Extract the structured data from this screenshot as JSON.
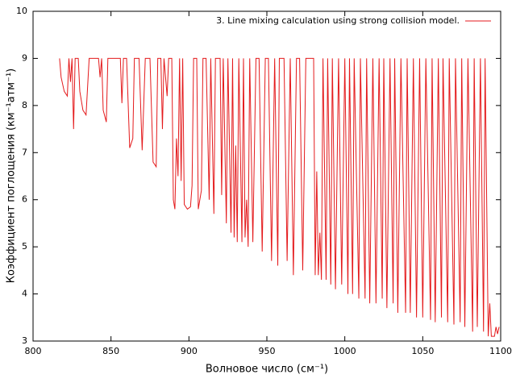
{
  "chart_data": {
    "type": "line",
    "xlabel": "Волновое число (см⁻¹)",
    "ylabel": "Коэффициент поглощения (км⁻¹атм⁻¹)",
    "legend_position": "top-right",
    "xlim": [
      800,
      1100
    ],
    "xticks": [
      800,
      850,
      900,
      950,
      1000,
      1050,
      1100
    ],
    "ylim": [
      3,
      10
    ],
    "yticks": [
      3,
      4,
      5,
      6,
      7,
      8,
      9,
      10
    ],
    "x": [
      817,
      818,
      820,
      822,
      823,
      824,
      825,
      826,
      827,
      829,
      830,
      832,
      834,
      836,
      842,
      843,
      844,
      845,
      847,
      848,
      856,
      857,
      858,
      860,
      862,
      864,
      865,
      868,
      870,
      872,
      875,
      877,
      879,
      880,
      882,
      883,
      884,
      886,
      887,
      889,
      890,
      891,
      892,
      893,
      894,
      895,
      896,
      897,
      899,
      901,
      902,
      903,
      905,
      906,
      908,
      909,
      911,
      913,
      914,
      916,
      917,
      920,
      921,
      922,
      924,
      925,
      927,
      928,
      929,
      930,
      931,
      932,
      934,
      935,
      936,
      937,
      938,
      939,
      941,
      943,
      945,
      947,
      949,
      951,
      953,
      955,
      957,
      958,
      961,
      963,
      965,
      967,
      969,
      971,
      973,
      975,
      980,
      981,
      982,
      983,
      984,
      985,
      986,
      988,
      989,
      991,
      992,
      994,
      996,
      998,
      1000,
      1002,
      1003,
      1005,
      1006,
      1009,
      1010,
      1013,
      1014,
      1016,
      1018,
      1020,
      1022,
      1024,
      1025,
      1027,
      1029,
      1031,
      1032,
      1034,
      1036,
      1039,
      1040,
      1042,
      1044,
      1046,
      1048,
      1050,
      1052,
      1055,
      1056,
      1058,
      1060,
      1062,
      1063,
      1066,
      1067,
      1070,
      1071,
      1074,
      1075,
      1077,
      1079,
      1082,
      1083,
      1085,
      1087,
      1089,
      1090,
      1092,
      1093,
      1094,
      1096,
      1097,
      1098,
      1099
    ],
    "series": [
      {
        "name": "3. Line mixing calculation using strong collision model.",
        "color": "#e41a1c",
        "values": [
          9,
          8.6,
          8.3,
          8.2,
          9,
          8.5,
          9,
          7.5,
          9,
          9,
          8.3,
          7.9,
          7.8,
          9,
          9,
          8.6,
          9,
          7.9,
          7.65,
          9,
          9,
          8.05,
          9,
          9,
          7.1,
          7.3,
          9,
          9,
          7.05,
          9,
          9,
          6.8,
          6.7,
          9,
          9,
          7.5,
          9,
          8.2,
          9,
          9,
          6.0,
          5.8,
          7.3,
          6.5,
          9,
          6.4,
          9,
          5.9,
          5.8,
          5.85,
          6.3,
          9,
          9,
          5.8,
          6.2,
          9,
          9,
          6.0,
          9,
          5.7,
          9,
          9,
          6.1,
          9,
          5.5,
          9,
          5.3,
          9,
          5.2,
          7.15,
          5.1,
          9,
          5.1,
          9,
          5.2,
          6.0,
          5.0,
          9,
          5.1,
          9,
          9,
          4.9,
          9,
          9,
          4.7,
          9,
          4.6,
          9,
          9,
          4.7,
          9,
          4.4,
          9,
          9,
          4.5,
          9,
          9,
          4.4,
          6.6,
          4.4,
          5.3,
          4.3,
          9,
          4.3,
          9,
          4.2,
          9,
          4.1,
          9,
          4.2,
          9,
          4.0,
          9,
          4.0,
          9,
          3.9,
          9,
          3.9,
          9,
          3.8,
          9,
          3.8,
          9,
          3.9,
          9,
          3.7,
          9,
          3.8,
          9,
          3.6,
          9,
          3.6,
          9,
          3.6,
          9,
          3.5,
          9,
          3.5,
          9,
          3.45,
          9,
          3.4,
          9,
          3.5,
          9,
          3.4,
          9,
          3.35,
          9,
          3.4,
          9,
          3.3,
          9,
          3.2,
          9,
          3.3,
          9,
          3.2,
          9,
          3.1,
          3.8,
          3.1,
          3.1,
          3.3,
          3.15,
          3.3
        ]
      }
    ]
  }
}
